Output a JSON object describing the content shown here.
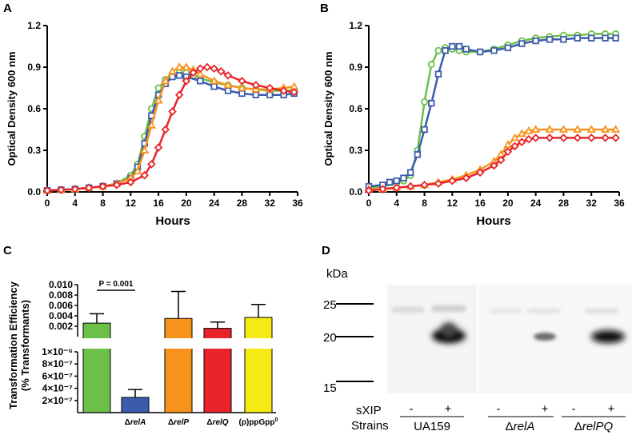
{
  "colors": {
    "green": "#6cc04a",
    "blue": "#3b5bab",
    "orange": "#f7931d",
    "red": "#e8242a",
    "yellow": "#f5ea14"
  },
  "chart_data": [
    {
      "id": "A",
      "panel_label": "A",
      "type": "line",
      "ylabel": "Optical Density 600 nm",
      "xlabel": "Hours",
      "xlim": [
        0,
        36
      ],
      "ylim": [
        0,
        1.2
      ],
      "x_ticks": [
        "0",
        "4",
        "8",
        "12",
        "16",
        "20",
        "24",
        "28",
        "32",
        "36"
      ],
      "y_ticks": [
        "0.0",
        "0.3",
        "0.6",
        "0.9",
        "1.2"
      ],
      "x_tick_values": [
        0,
        4,
        8,
        12,
        16,
        20,
        24,
        28,
        32,
        36
      ],
      "y_tick_values": [
        0,
        0.3,
        0.6,
        0.9,
        1.2
      ],
      "series": [
        {
          "name": "UA159",
          "color": "#6cc04a",
          "marker": "circle",
          "points": [
            [
              0,
              0.01
            ],
            [
              2,
              0.015
            ],
            [
              4,
              0.02
            ],
            [
              6,
              0.03
            ],
            [
              8,
              0.04
            ],
            [
              10,
              0.06
            ],
            [
              12,
              0.12
            ],
            [
              13,
              0.2
            ],
            [
              14,
              0.4
            ],
            [
              15,
              0.6
            ],
            [
              16,
              0.75
            ],
            [
              17,
              0.81
            ],
            [
              18,
              0.85
            ],
            [
              19,
              0.86
            ],
            [
              20,
              0.86
            ],
            [
              21,
              0.84
            ],
            [
              22,
              0.82
            ],
            [
              24,
              0.79
            ],
            [
              26,
              0.77
            ],
            [
              28,
              0.75
            ],
            [
              30,
              0.74
            ],
            [
              32,
              0.73
            ],
            [
              34,
              0.73
            ],
            [
              35.5,
              0.73
            ]
          ]
        },
        {
          "name": "ΔrelA",
          "color": "#3b5bab",
          "marker": "square",
          "points": [
            [
              0,
              0.01
            ],
            [
              2,
              0.015
            ],
            [
              4,
              0.02
            ],
            [
              6,
              0.03
            ],
            [
              8,
              0.04
            ],
            [
              10,
              0.06
            ],
            [
              12,
              0.1
            ],
            [
              13,
              0.18
            ],
            [
              14,
              0.35
            ],
            [
              15,
              0.55
            ],
            [
              16,
              0.7
            ],
            [
              17,
              0.78
            ],
            [
              18,
              0.83
            ],
            [
              19,
              0.84
            ],
            [
              20,
              0.83
            ],
            [
              22,
              0.8
            ],
            [
              24,
              0.76
            ],
            [
              26,
              0.73
            ],
            [
              28,
              0.71
            ],
            [
              30,
              0.7
            ],
            [
              32,
              0.7
            ],
            [
              34,
              0.7
            ],
            [
              35.5,
              0.71
            ]
          ]
        },
        {
          "name": "ΔrelP",
          "color": "#f7931d",
          "marker": "triangle",
          "points": [
            [
              0,
              0.01
            ],
            [
              2,
              0.015
            ],
            [
              4,
              0.02
            ],
            [
              6,
              0.03
            ],
            [
              8,
              0.04
            ],
            [
              10,
              0.06
            ],
            [
              12,
              0.1
            ],
            [
              13,
              0.15
            ],
            [
              14,
              0.3
            ],
            [
              15,
              0.48
            ],
            [
              16,
              0.66
            ],
            [
              17,
              0.8
            ],
            [
              18,
              0.87
            ],
            [
              19,
              0.9
            ],
            [
              20,
              0.9
            ],
            [
              21,
              0.88
            ],
            [
              22,
              0.85
            ],
            [
              24,
              0.8
            ],
            [
              26,
              0.77
            ],
            [
              28,
              0.75
            ],
            [
              30,
              0.74
            ],
            [
              32,
              0.74
            ],
            [
              34,
              0.75
            ],
            [
              35.5,
              0.76
            ]
          ]
        },
        {
          "name": "ΔrelQ",
          "color": "#e8242a",
          "marker": "diamond",
          "points": [
            [
              0,
              0.01
            ],
            [
              2,
              0.015
            ],
            [
              4,
              0.02
            ],
            [
              6,
              0.03
            ],
            [
              8,
              0.04
            ],
            [
              10,
              0.05
            ],
            [
              12,
              0.07
            ],
            [
              14,
              0.12
            ],
            [
              15,
              0.2
            ],
            [
              16,
              0.32
            ],
            [
              17,
              0.45
            ],
            [
              18,
              0.58
            ],
            [
              19,
              0.7
            ],
            [
              20,
              0.8
            ],
            [
              21,
              0.86
            ],
            [
              22,
              0.89
            ],
            [
              23,
              0.9
            ],
            [
              24,
              0.89
            ],
            [
              25,
              0.87
            ],
            [
              26,
              0.84
            ],
            [
              28,
              0.8
            ],
            [
              30,
              0.77
            ],
            [
              32,
              0.75
            ],
            [
              34,
              0.73
            ],
            [
              35.5,
              0.72
            ]
          ]
        }
      ]
    },
    {
      "id": "B",
      "panel_label": "B",
      "type": "line",
      "ylabel": "Optical Density 600 nm",
      "xlabel": "Hours",
      "xlim": [
        0,
        36
      ],
      "ylim": [
        0,
        1.2
      ],
      "x_ticks": [
        "0",
        "4",
        "8",
        "12",
        "16",
        "20",
        "24",
        "28",
        "32",
        "36"
      ],
      "y_ticks": [
        "0.0",
        "0.3",
        "0.6",
        "0.9",
        "1.2"
      ],
      "x_tick_values": [
        0,
        4,
        8,
        12,
        16,
        20,
        24,
        28,
        32,
        36
      ],
      "y_tick_values": [
        0,
        0.3,
        0.6,
        0.9,
        1.2
      ],
      "series": [
        {
          "name": "UA159",
          "color": "#6cc04a",
          "marker": "circle",
          "points": [
            [
              0,
              0.03
            ],
            [
              2,
              0.04
            ],
            [
              4,
              0.06
            ],
            [
              5,
              0.08
            ],
            [
              6,
              0.12
            ],
            [
              7,
              0.3
            ],
            [
              8,
              0.65
            ],
            [
              9,
              0.92
            ],
            [
              10,
              1.02
            ],
            [
              11,
              1.04
            ],
            [
              12,
              1.03
            ],
            [
              13,
              1.02
            ],
            [
              14,
              1.01
            ],
            [
              16,
              1.01
            ],
            [
              18,
              1.03
            ],
            [
              20,
              1.06
            ],
            [
              22,
              1.09
            ],
            [
              24,
              1.11
            ],
            [
              26,
              1.12
            ],
            [
              28,
              1.13
            ],
            [
              30,
              1.13
            ],
            [
              32,
              1.14
            ],
            [
              34,
              1.14
            ],
            [
              35.5,
              1.14
            ]
          ]
        },
        {
          "name": "ΔrelA",
          "color": "#3b5bab",
          "marker": "square",
          "points": [
            [
              0,
              0.04
            ],
            [
              2,
              0.05
            ],
            [
              3,
              0.07
            ],
            [
              4,
              0.08
            ],
            [
              5,
              0.1
            ],
            [
              6,
              0.14
            ],
            [
              7,
              0.27
            ],
            [
              8,
              0.45
            ],
            [
              9,
              0.64
            ],
            [
              10,
              0.85
            ],
            [
              11,
              1.02
            ],
            [
              12,
              1.05
            ],
            [
              13,
              1.05
            ],
            [
              14,
              1.03
            ],
            [
              16,
              1.01
            ],
            [
              18,
              1.02
            ],
            [
              20,
              1.04
            ],
            [
              22,
              1.07
            ],
            [
              24,
              1.09
            ],
            [
              26,
              1.1
            ],
            [
              28,
              1.1
            ],
            [
              30,
              1.11
            ],
            [
              32,
              1.11
            ],
            [
              34,
              1.11
            ],
            [
              35.5,
              1.11
            ]
          ]
        },
        {
          "name": "ΔrelP",
          "color": "#f7931d",
          "marker": "triangle",
          "points": [
            [
              0,
              0.02
            ],
            [
              2,
              0.02
            ],
            [
              4,
              0.03
            ],
            [
              6,
              0.04
            ],
            [
              8,
              0.05
            ],
            [
              10,
              0.07
            ],
            [
              12,
              0.09
            ],
            [
              14,
              0.12
            ],
            [
              16,
              0.16
            ],
            [
              18,
              0.22
            ],
            [
              19,
              0.27
            ],
            [
              20,
              0.34
            ],
            [
              21,
              0.39
            ],
            [
              22,
              0.42
            ],
            [
              23,
              0.44
            ],
            [
              24,
              0.45
            ],
            [
              26,
              0.45
            ],
            [
              28,
              0.45
            ],
            [
              30,
              0.45
            ],
            [
              32,
              0.45
            ],
            [
              34,
              0.45
            ],
            [
              35.5,
              0.45
            ]
          ]
        },
        {
          "name": "ΔrelQ",
          "color": "#e8242a",
          "marker": "diamond",
          "points": [
            [
              0,
              0.01
            ],
            [
              2,
              0.02
            ],
            [
              4,
              0.03
            ],
            [
              6,
              0.04
            ],
            [
              8,
              0.05
            ],
            [
              10,
              0.06
            ],
            [
              12,
              0.08
            ],
            [
              14,
              0.1
            ],
            [
              16,
              0.14
            ],
            [
              18,
              0.19
            ],
            [
              19,
              0.23
            ],
            [
              20,
              0.29
            ],
            [
              21,
              0.33
            ],
            [
              22,
              0.36
            ],
            [
              23,
              0.38
            ],
            [
              24,
              0.39
            ],
            [
              26,
              0.39
            ],
            [
              28,
              0.39
            ],
            [
              30,
              0.39
            ],
            [
              32,
              0.39
            ],
            [
              34,
              0.39
            ],
            [
              35.5,
              0.39
            ]
          ]
        }
      ]
    },
    {
      "id": "C",
      "panel_label": "C",
      "type": "bar",
      "ylabel_line1": "Transformation Efficiency",
      "ylabel_line2": "(% Transformants)",
      "categories": [
        {
          "prefix": "",
          "italic": "",
          "sup": "",
          "full": "UA159"
        },
        {
          "prefix": "Δ",
          "italic": "relA",
          "sup": "",
          "full": "ΔrelA"
        },
        {
          "prefix": "Δ",
          "italic": "relP",
          "sup": "",
          "full": "ΔrelP"
        },
        {
          "prefix": "Δ",
          "italic": "relQ",
          "sup": "",
          "full": "ΔrelQ"
        },
        {
          "prefix": "(p)ppGpp",
          "italic": "",
          "sup": "0",
          "full": "(p)ppGpp0"
        }
      ],
      "colors": [
        "#6cc04a",
        "#3b5bab",
        "#f7931d",
        "#e8242a",
        "#f5ea14"
      ],
      "upper_axis": {
        "range": [
          0,
          0.01
        ],
        "ticks": [
          "0.010",
          "0.008",
          "0.006",
          "0.004",
          "0.002"
        ],
        "tick_values": [
          0.01,
          0.008,
          0.006,
          0.004,
          0.002
        ]
      },
      "lower_axis": {
        "range": [
          0,
          1e-06
        ],
        "ticks": [
          "1×10⁻⁶",
          "8×10⁻⁷",
          "6×10⁻⁷",
          "4×10⁻⁷",
          "2×10⁻⁷"
        ],
        "tick_values": [
          1e-06,
          8e-07,
          6e-07,
          4e-07,
          2e-07
        ]
      },
      "values": [
        0.0026,
        2.5e-07,
        0.0035,
        0.0016,
        0.0037
      ],
      "errors": [
        0.0018,
        1.3e-07,
        0.0052,
        0.0012,
        0.0025
      ],
      "annotation": "P = 0.001"
    }
  ],
  "blot": {
    "panel_label": "D",
    "unit_label": "kDa",
    "markers": [
      "25",
      "20",
      "15"
    ],
    "sxip_label": "sXIP",
    "strains_label": "Strains",
    "lane_signs": [
      "-",
      "+",
      "-",
      "+",
      "-",
      "+"
    ],
    "strain_names": [
      {
        "prefix": "",
        "italic": "UA159"
      },
      {
        "prefix": "Δ",
        "italic": "relA"
      },
      {
        "prefix": "Δ",
        "italic": "relPQ"
      }
    ]
  }
}
